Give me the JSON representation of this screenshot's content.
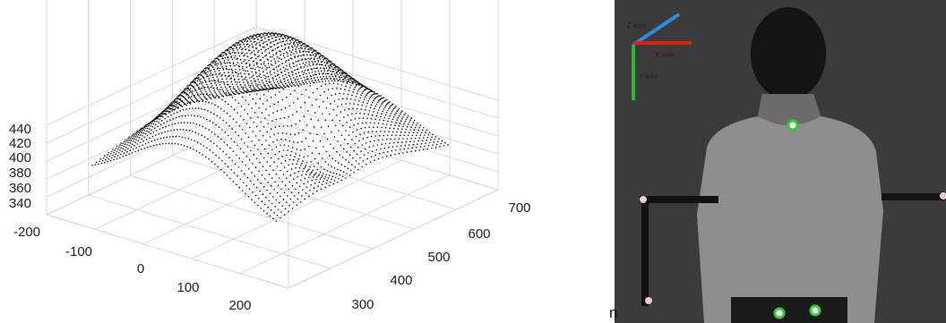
{
  "plot": {
    "z_ticks": [
      440,
      420,
      400,
      380,
      360,
      340
    ],
    "x_ticks": [
      -200,
      -100,
      0,
      100,
      200
    ],
    "y_ticks": [
      300,
      400,
      500,
      600,
      700
    ]
  },
  "photo": {
    "z_axis_label": "Z axis",
    "x_axis_label": "X axis",
    "y_axis_label": "Y axis"
  },
  "stray_text": "n"
}
